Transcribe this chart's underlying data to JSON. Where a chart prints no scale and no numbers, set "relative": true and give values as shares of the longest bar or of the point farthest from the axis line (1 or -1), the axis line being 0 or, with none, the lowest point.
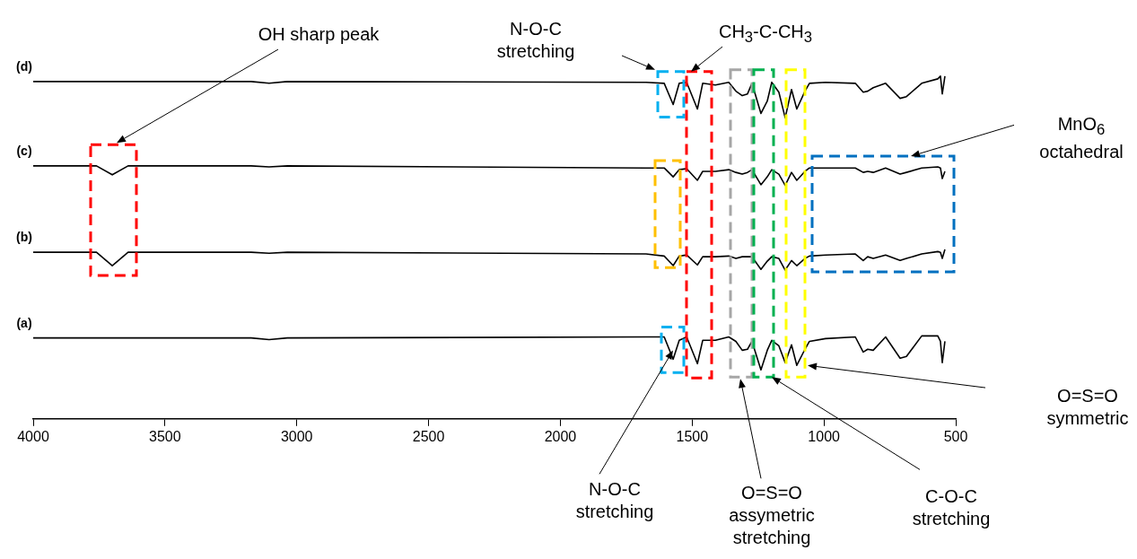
{
  "chart_data": {
    "type": "line",
    "relative": true,
    "x": [
      4000,
      3760,
      3700,
      3640,
      3173,
      3105,
      3036,
      1675,
      1606,
      1572,
      1549,
      1521,
      1480,
      1460,
      1412,
      1361,
      1334,
      1310,
      1290,
      1273,
      1239,
      1215,
      1198,
      1171,
      1147,
      1123,
      1103,
      1072,
      1055,
      994,
      881,
      851,
      834,
      813,
      766,
      711,
      687,
      629,
      568,
      558,
      551,
      541
    ],
    "series": [
      {
        "name": "(d)",
        "color": "#000000",
        "values": [
          0.984,
          0.984,
          0.984,
          0.984,
          0.984,
          0.979,
          0.984,
          0.982,
          0.979,
          0.917,
          0.979,
          0.982,
          0.904,
          0.979,
          0.974,
          0.982,
          0.956,
          0.943,
          0.948,
          0.979,
          0.891,
          0.927,
          0.982,
          0.953,
          0.878,
          0.961,
          0.904,
          0.956,
          0.979,
          0.982,
          0.979,
          0.953,
          0.956,
          0.966,
          0.979,
          0.935,
          0.94,
          0.979,
          0.992,
          1,
          0.948,
          1
        ]
      },
      {
        "name": "(c)",
        "color": "#000000",
        "values": [
          0.738,
          0.738,
          0.712,
          0.738,
          0.738,
          0.735,
          0.738,
          0.732,
          0.732,
          0.706,
          0.727,
          0.73,
          0.696,
          0.722,
          0.722,
          0.727,
          0.719,
          0.714,
          0.719,
          0.727,
          0.683,
          0.706,
          0.727,
          0.714,
          0.681,
          0.719,
          0.696,
          0.722,
          0.732,
          0.732,
          0.732,
          0.719,
          0.722,
          0.719,
          0.732,
          0.714,
          0.719,
          0.732,
          0.735,
          0.732,
          0.701,
          0.722
        ]
      },
      {
        "name": "(b)",
        "color": "#000000",
        "values": [
          0.486,
          0.486,
          0.447,
          0.486,
          0.486,
          0.483,
          0.486,
          0.481,
          0.475,
          0.447,
          0.475,
          0.478,
          0.449,
          0.473,
          0.473,
          0.475,
          0.468,
          0.473,
          0.473,
          0.473,
          0.436,
          0.46,
          0.473,
          0.468,
          0.434,
          0.462,
          0.447,
          0.468,
          0.475,
          0.478,
          0.481,
          0.462,
          0.473,
          0.468,
          0.478,
          0.462,
          0.468,
          0.481,
          0.488,
          0.486,
          0.468,
          0.494
        ]
      },
      {
        "name": "(a)",
        "color": "#000000",
        "values": [
          0.236,
          0.236,
          0.236,
          0.236,
          0.236,
          0.231,
          0.236,
          0.239,
          0.239,
          0.174,
          0.229,
          0.239,
          0.161,
          0.229,
          0.229,
          0.239,
          0.226,
          0.2,
          0.203,
          0.226,
          0.143,
          0.2,
          0.229,
          0.213,
          0.164,
          0.216,
          0.156,
          0.203,
          0.226,
          0.234,
          0.239,
          0.195,
          0.203,
          0.2,
          0.239,
          0.177,
          0.182,
          0.242,
          0.242,
          0.226,
          0.164,
          0.226
        ]
      }
    ],
    "xlim": [
      4000,
      500
    ],
    "xticks": [
      4000,
      3500,
      3000,
      2500,
      2000,
      1500,
      1000,
      500
    ],
    "annotations": [
      "OH sharp peak",
      "N-O-C\nstretching",
      "CH$_{3}$-C-CH$_{3}$",
      "MnO$_{6}$\noctahedral",
      "O=S=O\nsymmetric",
      "C-O-C\nstretching",
      "O=S=O\nassymetric\nstretching",
      "N-O-C\nstretching"
    ],
    "legend": false,
    "grid": false,
    "marker": "none",
    "line_style": "solid"
  }
}
